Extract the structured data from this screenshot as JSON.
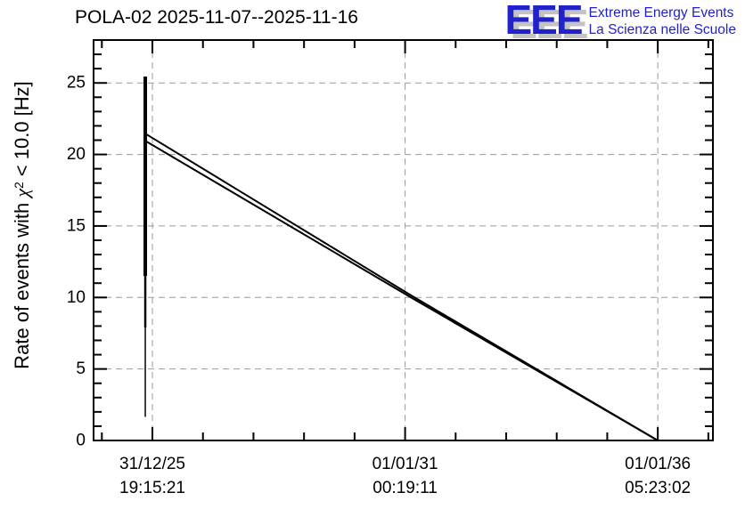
{
  "header": {
    "title": "POLA-02 2025-11-07--2025-11-16",
    "logo": {
      "acronym": "EEE",
      "line1": "Extreme Energy Events",
      "line2": "La Scienza nelle Scuole",
      "color": "#2222cc",
      "shadow_color": "#c3c3c3"
    }
  },
  "chart_data": {
    "type": "line",
    "title": "POLA-02 2025-11-07--2025-11-16",
    "ylabel": {
      "prefix": "Rate of events with ",
      "chi": "χ",
      "sup": "2",
      "suffix": " < 10.0 [Hz]"
    },
    "ylim": [
      0,
      28
    ],
    "y_major_ticks": [
      0,
      5,
      10,
      15,
      20,
      25
    ],
    "y_minor_step": 1,
    "x_ticks": [
      {
        "frac": 0.095,
        "date": "31/12/25",
        "time": "19:15:21"
      },
      {
        "frac": 0.503,
        "date": "01/01/31",
        "time": "00:19:11"
      },
      {
        "frac": 0.911,
        "date": "01/01/36",
        "time": "05:23:02"
      }
    ],
    "x_minor_start_frac": 0.0134,
    "x_minor_step_frac": 0.0816,
    "grid": {
      "dashed": true,
      "color": "#9b9b9b"
    },
    "axis_color": "#000000",
    "line_color": "#000000",
    "series": [
      {
        "name": "event-rate-burst-dense",
        "kind": "vline",
        "x_frac": 0.0835,
        "y_from": 25.45,
        "y_to": 11.5,
        "stroke_width": 4
      },
      {
        "name": "event-rate-burst-mid",
        "kind": "vline",
        "x_frac": 0.0835,
        "y_from": 11.5,
        "y_to": 7.9,
        "stroke_width": 2.5
      },
      {
        "name": "event-rate-burst-tail",
        "kind": "vline",
        "x_frac": 0.0835,
        "y_from": 7.9,
        "y_to": 1.65,
        "stroke_width": 1.5
      },
      {
        "name": "drift-line-upper",
        "kind": "polyline",
        "stroke_width": 2,
        "points_frac": [
          [
            0.0856,
            21.4
          ],
          [
            0.5137,
            10.12
          ],
          [
            0.911,
            0
          ]
        ]
      },
      {
        "name": "drift-line-lower",
        "kind": "polyline",
        "stroke_width": 2,
        "points_frac": [
          [
            0.0856,
            20.9
          ],
          [
            0.5137,
            9.97
          ],
          [
            0.911,
            0
          ]
        ]
      }
    ]
  }
}
